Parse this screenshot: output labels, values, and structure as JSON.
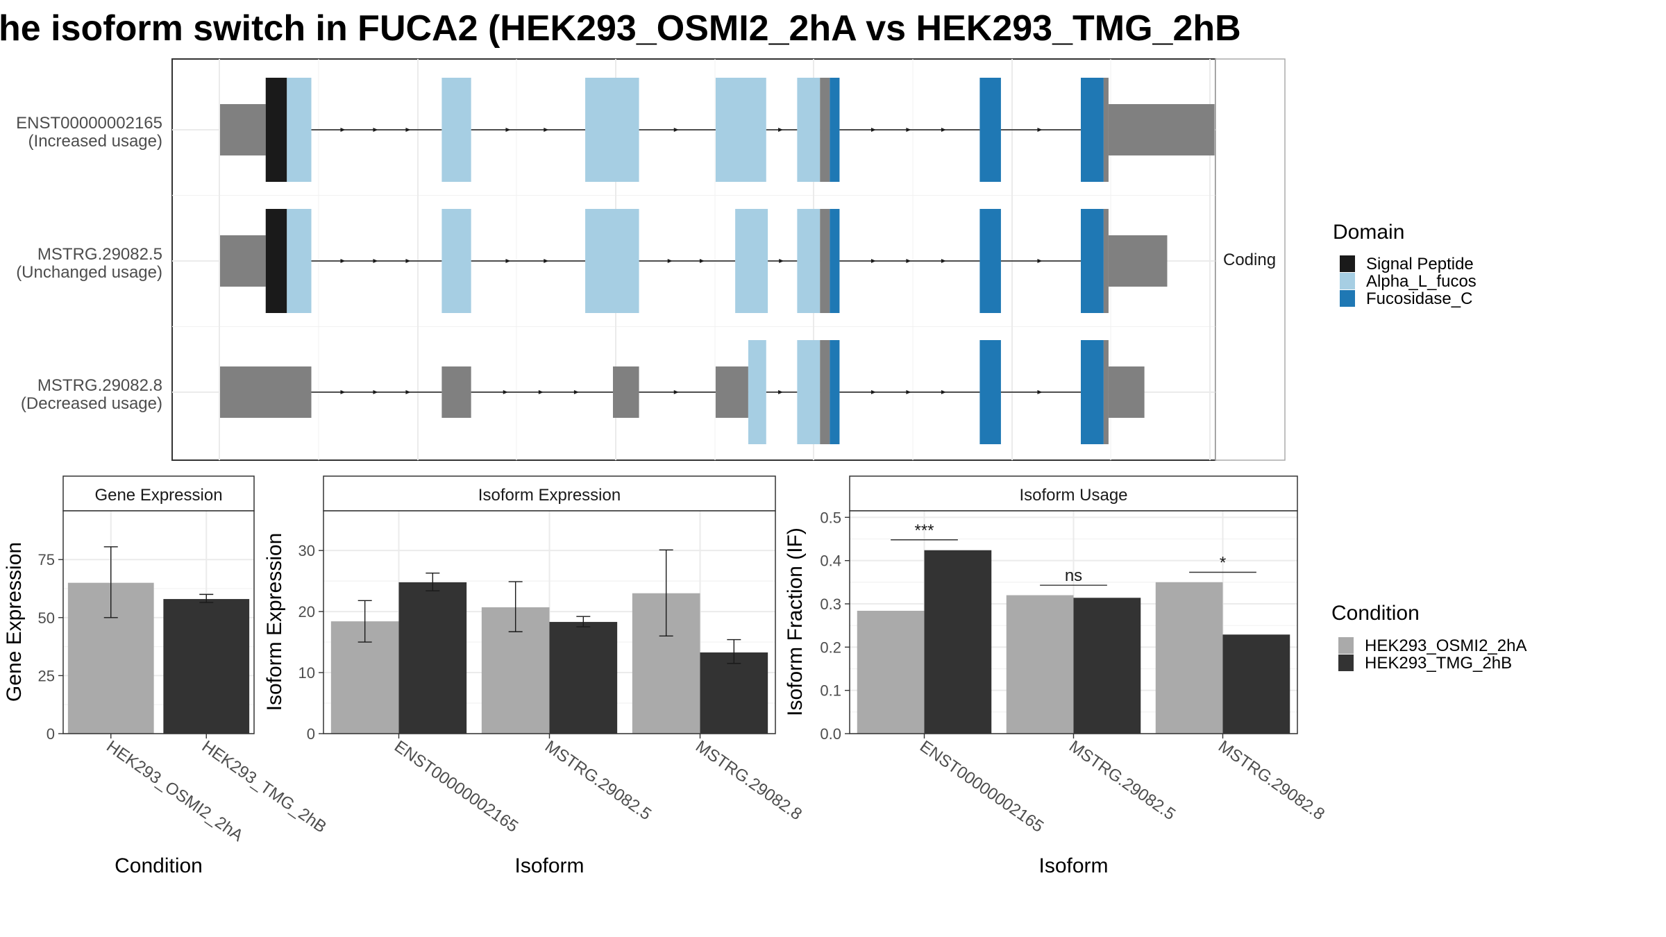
{
  "title": "he isoform switch in FUCA2 (HEK293_OSMI2_2hA vs HEK293_TMG_2hB",
  "colors": {
    "signal_peptide": "#1a1a1a",
    "alpha_l_fucos": "#a6cee3",
    "fucosidase_c": "#1f78b4",
    "utr": "#808080",
    "condition_a": "#aaaaaa",
    "condition_b": "#333333"
  },
  "structure": {
    "facet_label": "Coding",
    "isoforms": [
      {
        "name": "ENST00000002165",
        "usage_label": "(Increased usage)",
        "segments": [
          {
            "start": 0,
            "end": 14,
            "kind": "utr"
          },
          {
            "start": 14,
            "end": 20.5,
            "kind": "signal_peptide"
          },
          {
            "start": 20.5,
            "end": 28,
            "kind": "alpha_l_fucos"
          },
          {
            "start": 68,
            "end": 77,
            "kind": "alpha_l_fucos"
          },
          {
            "start": 112,
            "end": 128.5,
            "kind": "alpha_l_fucos"
          },
          {
            "start": 152,
            "end": 167.5,
            "kind": "alpha_l_fucos"
          },
          {
            "start": 177,
            "end": 184,
            "kind": "alpha_l_fucos"
          },
          {
            "start": 184,
            "end": 187,
            "kind": "utr_thin"
          },
          {
            "start": 187,
            "end": 190,
            "kind": "fucosidase_c"
          },
          {
            "start": 233,
            "end": 239.5,
            "kind": "fucosidase_c"
          },
          {
            "start": 264,
            "end": 271,
            "kind": "fucosidase_c"
          },
          {
            "start": 271,
            "end": 272.5,
            "kind": "utr_thin"
          },
          {
            "start": 272.5,
            "end": 305,
            "kind": "utr"
          }
        ]
      },
      {
        "name": "MSTRG.29082.5",
        "usage_label": "(Unchanged usage)",
        "segments": [
          {
            "start": 0,
            "end": 14,
            "kind": "utr"
          },
          {
            "start": 14,
            "end": 20.5,
            "kind": "signal_peptide"
          },
          {
            "start": 20.5,
            "end": 28,
            "kind": "alpha_l_fucos"
          },
          {
            "start": 68,
            "end": 77,
            "kind": "alpha_l_fucos"
          },
          {
            "start": 112,
            "end": 128.5,
            "kind": "alpha_l_fucos"
          },
          {
            "start": 158,
            "end": 168,
            "kind": "alpha_l_fucos"
          },
          {
            "start": 177,
            "end": 184,
            "kind": "alpha_l_fucos"
          },
          {
            "start": 184,
            "end": 187,
            "kind": "utr_thin"
          },
          {
            "start": 187,
            "end": 190,
            "kind": "fucosidase_c"
          },
          {
            "start": 233,
            "end": 239.5,
            "kind": "fucosidase_c"
          },
          {
            "start": 264,
            "end": 271,
            "kind": "fucosidase_c"
          },
          {
            "start": 271,
            "end": 272.5,
            "kind": "utr_thin"
          },
          {
            "start": 272.5,
            "end": 290.5,
            "kind": "utr"
          }
        ]
      },
      {
        "name": "MSTRG.29082.8",
        "usage_label": "(Decreased usage)",
        "segments": [
          {
            "start": 0,
            "end": 28,
            "kind": "utr"
          },
          {
            "start": 68,
            "end": 77,
            "kind": "utr"
          },
          {
            "start": 120.5,
            "end": 128.5,
            "kind": "utr"
          },
          {
            "start": 152,
            "end": 162,
            "kind": "utr"
          },
          {
            "start": 162,
            "end": 167.5,
            "kind": "alpha_l_fucos"
          },
          {
            "start": 177,
            "end": 184,
            "kind": "alpha_l_fucos"
          },
          {
            "start": 184,
            "end": 187,
            "kind": "utr_thin"
          },
          {
            "start": 187,
            "end": 190,
            "kind": "fucosidase_c"
          },
          {
            "start": 233,
            "end": 239.5,
            "kind": "fucosidase_c"
          },
          {
            "start": 264,
            "end": 271,
            "kind": "fucosidase_c"
          },
          {
            "start": 271,
            "end": 272.5,
            "kind": "utr_thin"
          },
          {
            "start": 272.5,
            "end": 283.5,
            "kind": "utr"
          }
        ]
      }
    ]
  },
  "legends": {
    "domain": {
      "title": "Domain",
      "items": [
        {
          "label": "Signal Peptide",
          "color_key": "signal_peptide"
        },
        {
          "label": "Alpha_L_fucos",
          "color_key": "alpha_l_fucos"
        },
        {
          "label": "Fucosidase_C",
          "color_key": "fucosidase_c"
        }
      ]
    },
    "condition": {
      "title": "Condition",
      "items": [
        {
          "label": "HEK293_OSMI2_2hA",
          "color_key": "condition_a"
        },
        {
          "label": "HEK293_TMG_2hB",
          "color_key": "condition_b"
        }
      ]
    }
  },
  "chart_data": [
    {
      "type": "bar",
      "title": "Gene Expression",
      "xlabel": "Condition",
      "ylabel": "Gene Expression",
      "categories": [
        "HEK293_OSMI2_2hA",
        "HEK293_TMG_2hB"
      ],
      "values": [
        65,
        58
      ],
      "error_low": [
        50,
        56.5
      ],
      "error_high": [
        80.5,
        60
      ],
      "yticks": [
        0,
        25,
        50,
        75
      ],
      "ylim": [
        0,
        96
      ]
    },
    {
      "type": "bar",
      "title": "Isoform Expression",
      "xlabel": "Isoform",
      "ylabel": "Isoform Expression",
      "categories": [
        "ENST00000002165",
        "MSTRG.29082.5",
        "MSTRG.29082.8"
      ],
      "series": [
        {
          "name": "HEK293_OSMI2_2hA",
          "values": [
            18.4,
            20.7,
            23.0
          ],
          "error_low": [
            15.0,
            16.7,
            16.0
          ],
          "error_high": [
            21.8,
            24.9,
            30.1
          ]
        },
        {
          "name": "HEK293_TMG_2hB",
          "values": [
            24.8,
            18.3,
            13.3
          ],
          "error_low": [
            23.4,
            17.5,
            11.5
          ],
          "error_high": [
            26.3,
            19.2,
            15.4
          ]
        }
      ],
      "yticks": [
        0,
        10,
        20,
        30
      ],
      "ylim": [
        0,
        36.5
      ]
    },
    {
      "type": "bar",
      "title": "Isoform Usage",
      "xlabel": "Isoform",
      "ylabel": "Isoform Fraction (IF)",
      "categories": [
        "ENST00000002165",
        "MSTRG.29082.5",
        "MSTRG.29082.8"
      ],
      "series": [
        {
          "name": "HEK293_OSMI2_2hA",
          "values": [
            0.284,
            0.32,
            0.35
          ]
        },
        {
          "name": "HEK293_TMG_2hB",
          "values": [
            0.424,
            0.314,
            0.229
          ]
        }
      ],
      "significance": [
        "***",
        "ns",
        "*"
      ],
      "significance_level": [
        0.448,
        0.343,
        0.373
      ],
      "yticks": [
        0.0,
        0.1,
        0.2,
        0.3,
        0.4,
        0.5
      ],
      "ylim": [
        0,
        0.515
      ]
    }
  ]
}
